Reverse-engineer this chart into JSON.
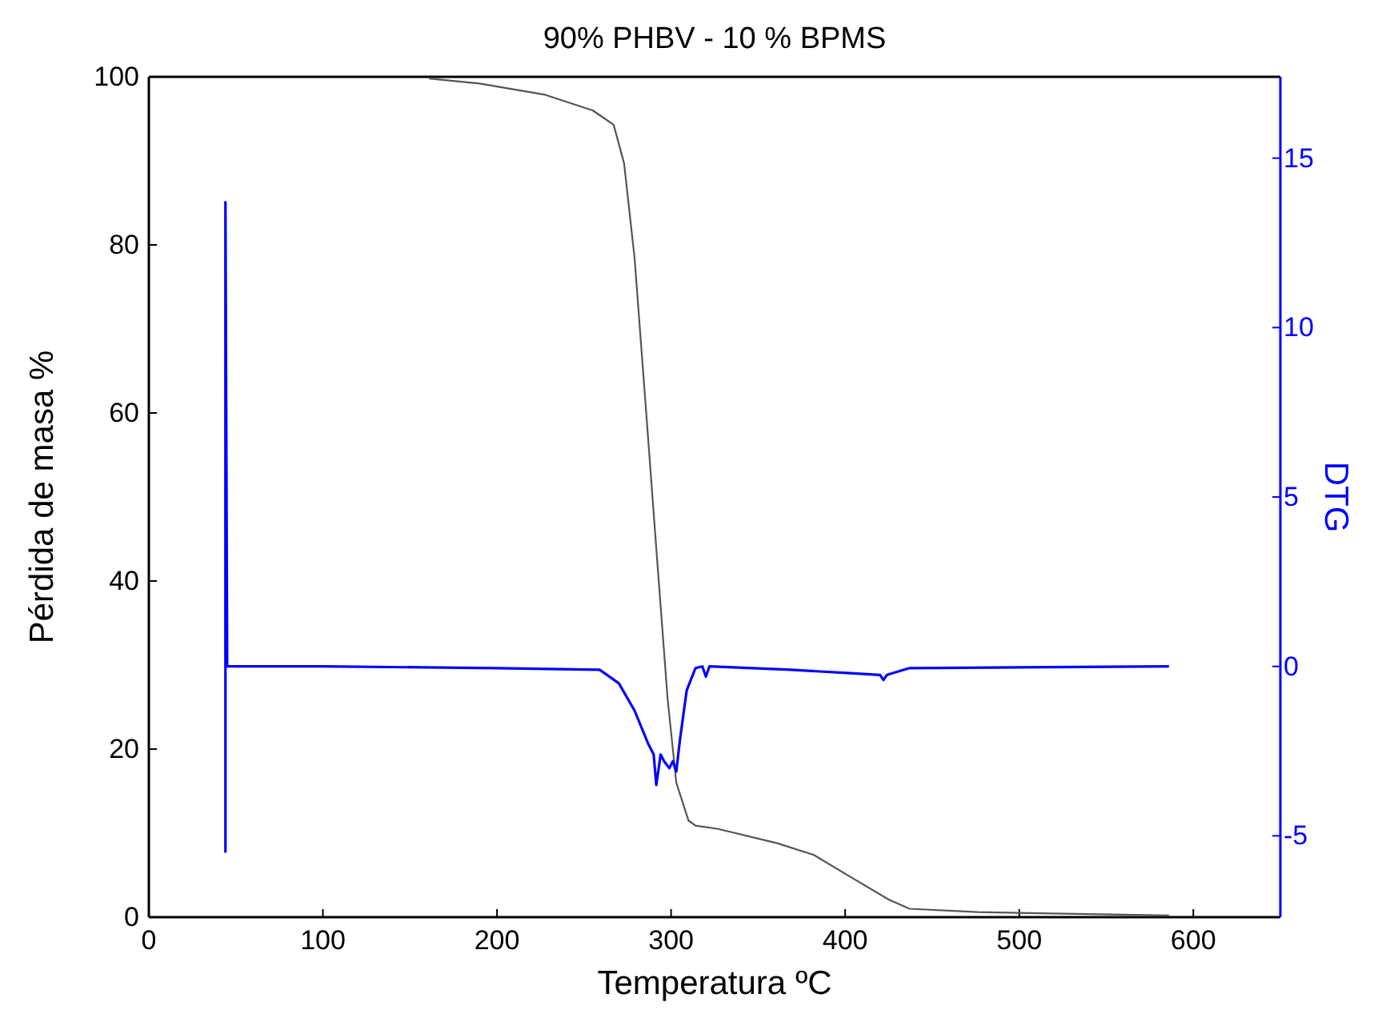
{
  "chart_data": {
    "type": "line",
    "title": "90% PHBV - 10 % BPMS",
    "xlabel": "Temperatura ºC",
    "ylabel": "Pérdida de masa %",
    "y2label": "DTG",
    "xlim": [
      0,
      650
    ],
    "xticks": [
      0,
      100,
      200,
      300,
      400,
      500,
      600
    ],
    "ylim": [
      0,
      100
    ],
    "yticks": [
      0,
      20,
      40,
      60,
      80,
      100
    ],
    "y2lim": [
      -7.4,
      17.4
    ],
    "y2ticks": [
      -5,
      0,
      5,
      10,
      15
    ],
    "marker": "none",
    "line_style": "solid",
    "series": [
      {
        "color": "#555555",
        "x": [
          161,
          190,
          227,
          255,
          267,
          273,
          279,
          285,
          292,
          298,
          303,
          310,
          314,
          327,
          361,
          382,
          403,
          425,
          437,
          476,
          586
        ],
        "values": [
          99.8,
          99.2,
          97.9,
          96,
          94.3,
          89.7,
          78.5,
          62,
          42.5,
          26,
          16,
          11.5,
          10.9,
          10.5,
          8.8,
          7.4,
          4.8,
          2.1,
          1,
          0.6,
          0.2
        ]
      },
      {
        "color": "#0000ff",
        "axis": "y2",
        "x": [
          44,
          44,
          45,
          100,
          200,
          259,
          270,
          279,
          287,
          290,
          291.5,
          294,
          296,
          299,
          301,
          303,
          305,
          309,
          314,
          318,
          320,
          322,
          369,
          403,
          420,
          422,
          424,
          437,
          586
        ],
        "values": [
          -5.5,
          13.7,
          0,
          0,
          -0.05,
          -0.1,
          -0.5,
          -1.3,
          -2.3,
          -2.6,
          -3.5,
          -2.6,
          -2.8,
          -3.0,
          -2.8,
          -3.1,
          -2.2,
          -0.7,
          -0.05,
          0,
          -0.3,
          0,
          -0.1,
          -0.2,
          -0.25,
          -0.4,
          -0.25,
          -0.05,
          0
        ]
      }
    ]
  }
}
